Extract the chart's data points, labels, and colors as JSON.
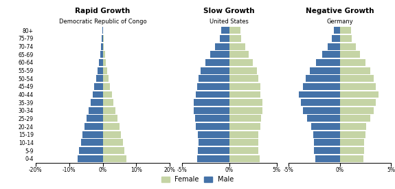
{
  "age_groups": [
    "0-4",
    "5-9",
    "10-14",
    "15-19",
    "20-24",
    "25-29",
    "30-34",
    "35-39",
    "40-44",
    "45-49",
    "50-54",
    "55-59",
    "60-64",
    "65-69",
    "70-74",
    "75-79",
    "80+"
  ],
  "congo": {
    "male": [
      -7.5,
      -7.0,
      -6.5,
      -6.0,
      -5.5,
      -4.8,
      -4.2,
      -3.6,
      -3.0,
      -2.5,
      -2.0,
      -1.6,
      -1.2,
      -0.8,
      -0.5,
      -0.3,
      -0.15
    ],
    "female": [
      7.0,
      6.5,
      6.0,
      5.5,
      5.0,
      4.4,
      3.8,
      3.2,
      2.7,
      2.2,
      1.8,
      1.4,
      1.0,
      0.7,
      0.4,
      0.25,
      0.15
    ]
  },
  "usa": {
    "male": [
      -3.4,
      -3.3,
      -3.2,
      -3.3,
      -3.5,
      -3.6,
      -3.7,
      -3.7,
      -3.5,
      -3.4,
      -3.2,
      -3.0,
      -2.5,
      -2.0,
      -1.5,
      -1.0,
      -0.8
    ],
    "female": [
      3.2,
      3.1,
      3.1,
      3.1,
      3.3,
      3.4,
      3.5,
      3.5,
      3.3,
      3.3,
      3.1,
      2.9,
      2.5,
      2.1,
      1.7,
      1.3,
      1.2
    ]
  },
  "germany": {
    "male": [
      -2.4,
      -2.5,
      -2.5,
      -2.6,
      -2.8,
      -3.2,
      -3.6,
      -3.8,
      -4.0,
      -3.6,
      -3.3,
      -2.9,
      -2.3,
      -1.7,
      -1.2,
      -0.8,
      -0.6
    ],
    "female": [
      2.3,
      2.4,
      2.4,
      2.5,
      2.6,
      3.0,
      3.3,
      3.5,
      3.8,
      3.5,
      3.3,
      3.0,
      2.5,
      2.0,
      1.6,
      1.2,
      1.1
    ]
  },
  "male_color": "#4472a8",
  "female_color": "#c5d4a5",
  "titles": [
    "Rapid Growth",
    "Slow Growth",
    "Negative Growth"
  ],
  "subtitles": [
    "Democratic Republic of Congo",
    "United States",
    "Germany"
  ],
  "congo_xlim": [
    -20,
    20
  ],
  "usa_xlim": [
    -5,
    5
  ],
  "germany_xlim": [
    -5,
    5
  ],
  "congo_xticks": [
    -20,
    -10,
    0,
    10,
    20
  ],
  "congo_xticklabels": [
    "-20%",
    "-10%",
    "0%",
    "10%",
    "20%"
  ],
  "usa_xticks": [
    -5,
    0,
    5
  ],
  "usa_xticklabels": [
    "-5%",
    "0%",
    "5%"
  ],
  "germany_xticks": [
    -5,
    0,
    5
  ],
  "germany_xticklabels": [
    "-5%",
    "0%",
    "5%"
  ]
}
